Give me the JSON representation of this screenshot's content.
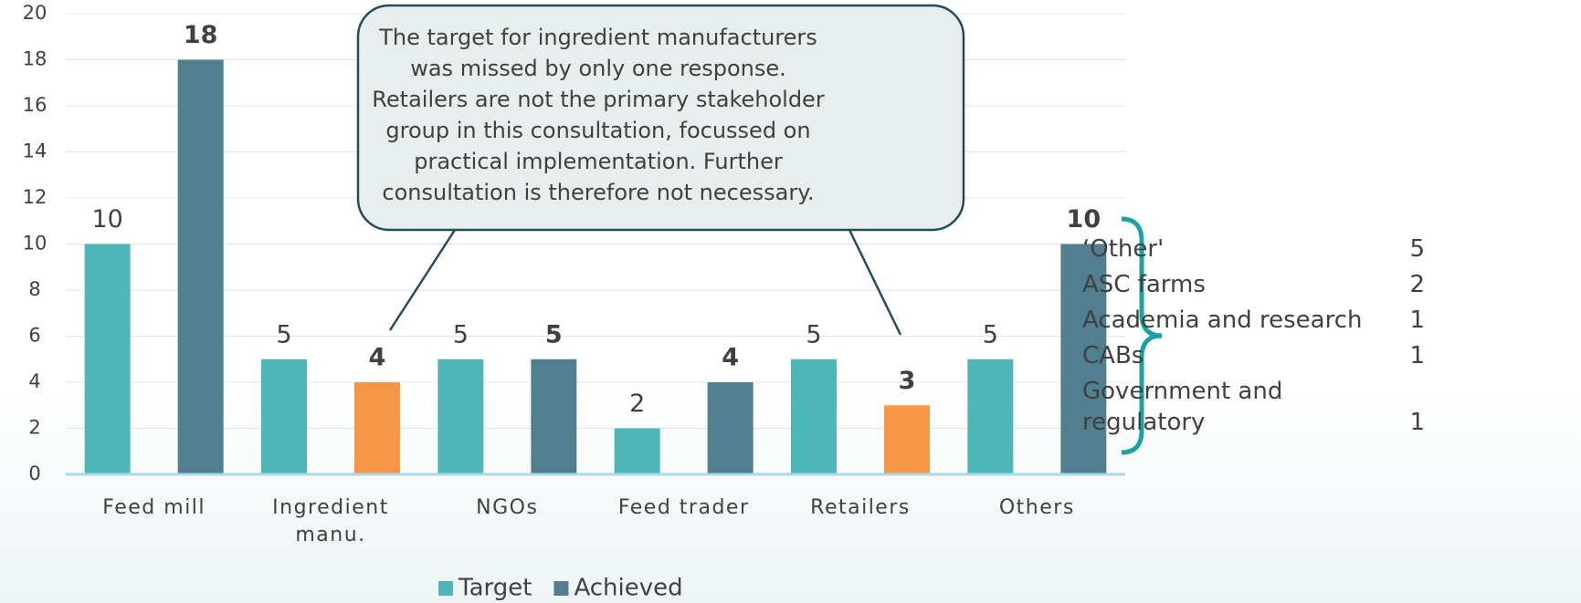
{
  "chart_data": {
    "type": "bar",
    "categories": [
      "Feed mill",
      "Ingredient manu.",
      "NGOs",
      "Feed trader",
      "Retailers",
      "Others"
    ],
    "series": [
      {
        "name": "Target",
        "color": "#4db6b6",
        "values": [
          10,
          5,
          5,
          2,
          5,
          5
        ]
      },
      {
        "name": "Achieved",
        "color": "#527f8f",
        "point_colors": [
          "#527f8f",
          "#f79646",
          "#527f8f",
          "#527f8f",
          "#f79646",
          "#527f8f"
        ],
        "values": [
          18,
          4,
          5,
          4,
          3,
          10
        ]
      }
    ],
    "ylim": [
      0,
      20
    ],
    "yticks": [
      0,
      2,
      4,
      6,
      8,
      10,
      12,
      14,
      16,
      18,
      20
    ],
    "grid": true,
    "legend": "bottom",
    "annotation": [
      "The target for ingredient manufacturers",
      "was missed by only one response.",
      "Retailers are not the primary stakeholder",
      "group in this consultation, focussed on",
      "practical implementation. Further",
      "consultation is therefore not necessary."
    ]
  },
  "breakdown": {
    "rows": [
      {
        "label": "‘Other'",
        "value": "5"
      },
      {
        "label": "ASC farms",
        "value": "2"
      },
      {
        "label": "Academia and research",
        "value": "1"
      },
      {
        "label": "CABs",
        "value": "1"
      },
      {
        "label": "Government and regulatory",
        "value": "1"
      }
    ]
  }
}
